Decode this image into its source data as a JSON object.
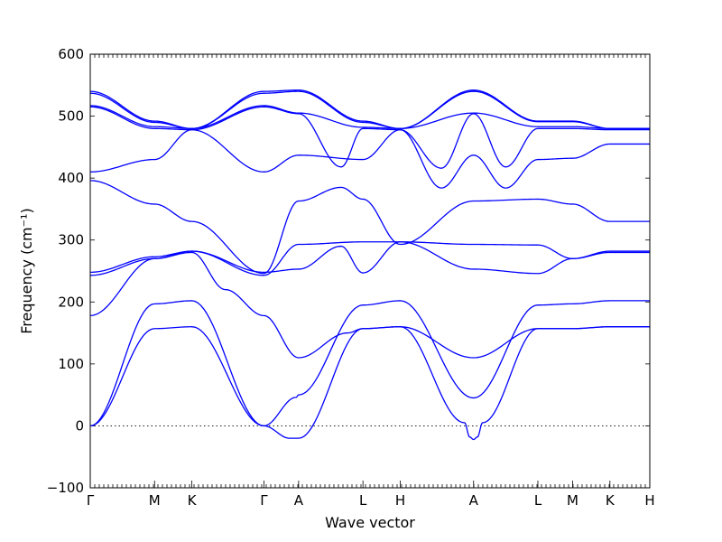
{
  "chart_data": {
    "type": "line",
    "title": "",
    "xlabel": "Wave vector",
    "ylabel": "Frequency (cm⁻¹)",
    "ylim": [
      -100,
      600
    ],
    "yticks": [
      -100,
      0,
      100,
      200,
      300,
      400,
      500,
      600
    ],
    "xlim": [
      0,
      4.35
    ],
    "kpoints": [
      {
        "label": "Γ",
        "x": 0
      },
      {
        "label": "M",
        "x": 0.5
      },
      {
        "label": "K",
        "x": 0.79
      },
      {
        "label": "Γ",
        "x": 1.35
      },
      {
        "label": "A",
        "x": 1.62
      },
      {
        "label": "L",
        "x": 2.12
      },
      {
        "label": "H",
        "x": 2.41
      },
      {
        "label": "A",
        "x": 2.98
      },
      {
        "label": "L",
        "x": 3.48
      },
      {
        "label": "M",
        "x": 3.75
      },
      {
        "label": "K",
        "x": 4.04
      },
      {
        "label": "H",
        "x": 4.35
      }
    ],
    "zero_line": true,
    "line_color": "#0000ff",
    "series": [
      {
        "x": [
          0,
          0.5,
          0.79,
          1.35,
          1.55,
          1.62,
          2.12,
          2.41,
          2.91,
          2.95,
          2.98,
          3.01,
          3.05,
          3.48,
          3.75,
          4.04,
          4.35
        ],
        "values": [
          0,
          157,
          160,
          0,
          -20,
          -20,
          157,
          160,
          5,
          -18,
          -22,
          -18,
          5,
          157,
          157,
          160,
          160
        ]
      },
      {
        "x": [
          0,
          0.5,
          0.79,
          1.35,
          1.6,
          1.62,
          2.12,
          2.41,
          2.98,
          3.48,
          3.75,
          4.04,
          4.35
        ],
        "values": [
          0,
          197,
          202,
          0,
          46,
          50,
          195,
          202,
          45,
          195,
          197,
          202,
          202
        ]
      },
      {
        "x": [
          0,
          0.5,
          0.79,
          1.05,
          1.35,
          1.62,
          2.0,
          2.12,
          2.41,
          2.98,
          3.48,
          3.75,
          4.04,
          4.35
        ],
        "values": [
          178,
          270,
          280,
          220,
          178,
          110,
          150,
          157,
          160,
          110,
          157,
          157,
          160,
          160
        ]
      },
      {
        "x": [
          0,
          0.5,
          0.79,
          1.35,
          1.62,
          2.12,
          2.41,
          2.98,
          3.48,
          3.75,
          4.04,
          4.35
        ],
        "values": [
          243,
          270,
          282,
          243,
          293,
          297,
          297,
          293,
          292,
          270,
          280,
          280
        ]
      },
      {
        "x": [
          0,
          0.5,
          0.79,
          1.35,
          1.62,
          1.95,
          2.12,
          2.41,
          2.98,
          3.48,
          3.75,
          4.04,
          4.35
        ],
        "values": [
          248,
          273,
          282,
          248,
          253,
          290,
          247,
          297,
          253,
          246,
          270,
          282,
          282
        ]
      },
      {
        "x": [
          0,
          0.5,
          0.79,
          1.35,
          1.62,
          1.95,
          2.12,
          2.41,
          2.98,
          3.48,
          3.75,
          4.04,
          4.35
        ],
        "values": [
          396,
          358,
          330,
          246,
          363,
          385,
          366,
          293,
          363,
          366,
          358,
          330,
          330
        ]
      },
      {
        "x": [
          0,
          0.5,
          0.79,
          1.35,
          1.62,
          2.12,
          2.41,
          2.73,
          2.98,
          3.23,
          3.48,
          3.75,
          4.04,
          4.35
        ],
        "values": [
          410,
          430,
          478,
          410,
          437,
          430,
          478,
          384,
          437,
          384,
          430,
          432,
          455,
          455
        ]
      },
      {
        "x": [
          0,
          0.5,
          0.79,
          1.35,
          1.62,
          1.95,
          2.12,
          2.41,
          2.73,
          2.98,
          3.23,
          3.48,
          3.75,
          4.04,
          4.35
        ],
        "values": [
          515,
          480,
          478,
          515,
          504,
          418,
          480,
          478,
          416,
          504,
          418,
          480,
          480,
          478,
          478
        ]
      },
      {
        "x": [
          0,
          0.5,
          0.79,
          1.35,
          1.62,
          2.12,
          2.41,
          2.98,
          3.48,
          3.75,
          4.04,
          4.35
        ],
        "values": [
          517,
          483,
          480,
          517,
          505,
          482,
          480,
          505,
          483,
          483,
          480,
          480
        ]
      },
      {
        "x": [
          0,
          0.5,
          0.79,
          1.35,
          1.62,
          2.12,
          2.41,
          2.98,
          3.48,
          3.75,
          4.04,
          4.35
        ],
        "values": [
          537,
          490,
          480,
          537,
          540,
          490,
          480,
          540,
          491,
          491,
          480,
          480
        ]
      },
      {
        "x": [
          0,
          0.5,
          0.79,
          1.35,
          1.62,
          2.12,
          2.41,
          2.98,
          3.48,
          3.75,
          4.04,
          4.35
        ],
        "values": [
          540,
          492,
          480,
          540,
          542,
          492,
          480,
          542,
          492,
          492,
          480,
          480
        ]
      }
    ]
  }
}
